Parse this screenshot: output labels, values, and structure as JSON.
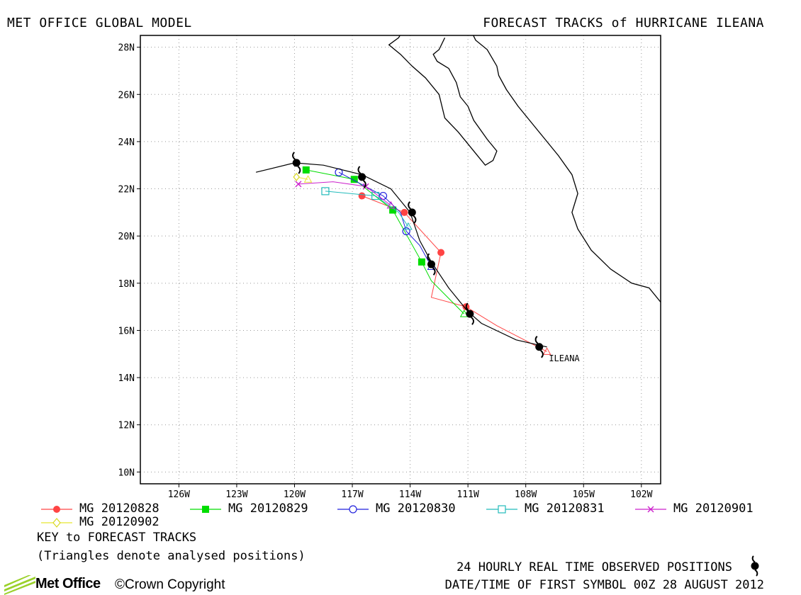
{
  "header": {
    "left_title": "MET OFFICE GLOBAL MODEL",
    "right_title": "FORECAST TRACKS of HURRICANE ILEANA"
  },
  "map": {
    "lon_range": [
      -128,
      -101
    ],
    "lat_range": [
      9.5,
      28.5
    ],
    "lon_ticks": [
      -126,
      -123,
      -120,
      -117,
      -114,
      -111,
      -108,
      -105,
      -102
    ],
    "lon_tick_labels": [
      "126W",
      "123W",
      "120W",
      "117W",
      "114W",
      "111W",
      "108W",
      "105W",
      "102W"
    ],
    "lat_ticks": [
      10,
      12,
      14,
      16,
      18,
      20,
      22,
      24,
      26,
      28
    ],
    "lat_tick_labels": [
      "10N",
      "12N",
      "14N",
      "16N",
      "18N",
      "20N",
      "22N",
      "24N",
      "26N",
      "28N"
    ],
    "grid": true,
    "storm_label": "ILEANA",
    "observed_track": {
      "color": "#000000",
      "points": [
        [
          -106.9,
          15.3
        ],
        [
          -108.5,
          15.6
        ],
        [
          -110.3,
          16.3
        ],
        [
          -111.0,
          16.8
        ],
        [
          -112.0,
          17.8
        ],
        [
          -112.9,
          18.9
        ],
        [
          -113.5,
          19.8
        ],
        [
          -114.0,
          21.0
        ],
        [
          -115.0,
          22.0
        ],
        [
          -116.5,
          22.6
        ],
        [
          -118.5,
          23.0
        ],
        [
          -120.0,
          23.1
        ],
        [
          -122.0,
          22.7
        ]
      ],
      "symbols": [
        [
          -107.3,
          15.3
        ],
        [
          -110.9,
          16.7
        ],
        [
          -112.9,
          18.8
        ],
        [
          -113.9,
          21.0
        ],
        [
          -116.5,
          22.5
        ],
        [
          -119.9,
          23.1
        ]
      ]
    },
    "forecast_tracks": [
      {
        "name": "MG 20120828",
        "color": "#ff4444",
        "marker": "circle-filled",
        "points": [
          [
            -106.9,
            15.1
          ],
          [
            -109.5,
            16.2
          ],
          [
            -111.1,
            17.0
          ],
          [
            -112.9,
            17.4
          ],
          [
            -112.4,
            19.3
          ],
          [
            -114.3,
            21.0
          ],
          [
            -116.5,
            21.7
          ]
        ],
        "markers": [
          [
            -111.1,
            17.0
          ],
          [
            -112.4,
            19.3
          ],
          [
            -114.3,
            21.0
          ],
          [
            -116.5,
            21.7
          ]
        ]
      },
      {
        "name": "MG 20120829",
        "color": "#00dd00",
        "marker": "square-filled",
        "points": [
          [
            -111.2,
            16.7
          ],
          [
            -112.9,
            18.1
          ],
          [
            -113.4,
            18.9
          ],
          [
            -114.9,
            21.1
          ],
          [
            -116.9,
            22.4
          ],
          [
            -119.4,
            22.8
          ]
        ],
        "markers": [
          [
            -113.4,
            18.9
          ],
          [
            -114.9,
            21.1
          ],
          [
            -116.9,
            22.4
          ],
          [
            -119.4,
            22.8
          ]
        ]
      },
      {
        "name": "MG 20120830",
        "color": "#2222dd",
        "marker": "circle-open",
        "points": [
          [
            -112.9,
            18.7
          ],
          [
            -113.5,
            19.6
          ],
          [
            -114.2,
            20.2
          ],
          [
            -114.5,
            21.0
          ],
          [
            -115.4,
            21.7
          ],
          [
            -117.7,
            22.7
          ]
        ],
        "markers": [
          [
            -114.2,
            20.2
          ],
          [
            -115.4,
            21.7
          ],
          [
            -117.7,
            22.7
          ]
        ]
      },
      {
        "name": "MG 20120831",
        "color": "#22bbbb",
        "marker": "square-open",
        "points": [
          [
            -114.1,
            20.4
          ],
          [
            -114.6,
            21.0
          ],
          [
            -115.8,
            21.7
          ],
          [
            -118.4,
            21.9
          ]
        ],
        "markers": [
          [
            -115.8,
            21.7
          ],
          [
            -118.4,
            21.9
          ]
        ]
      },
      {
        "name": "MG 20120901",
        "color": "#cc22cc",
        "marker": "cross",
        "points": [
          [
            -115.0,
            21.3
          ],
          [
            -116.3,
            22.1
          ],
          [
            -118.0,
            22.3
          ],
          [
            -119.8,
            22.2
          ]
        ],
        "markers": [
          [
            -116.3,
            22.1
          ],
          [
            -119.8,
            22.2
          ]
        ]
      },
      {
        "name": "MG 20120902",
        "color": "#e8e830",
        "marker": "diamond-open",
        "points": [
          [
            -119.3,
            22.4
          ],
          [
            -119.9,
            22.5
          ]
        ],
        "markers": [
          [
            -119.9,
            22.5
          ]
        ]
      }
    ],
    "coastline": [
      [
        -112.2,
        28.4
      ],
      [
        -112.5,
        27.9
      ],
      [
        -112.8,
        27.7
      ],
      [
        -112.6,
        27.4
      ],
      [
        -112.0,
        27.1
      ],
      [
        -111.6,
        26.5
      ],
      [
        -111.4,
        25.9
      ],
      [
        -111.0,
        25.5
      ],
      [
        -110.7,
        24.9
      ],
      [
        -110.0,
        24.1
      ],
      [
        -109.5,
        23.6
      ],
      [
        -109.7,
        23.2
      ],
      [
        -110.1,
        23.0
      ],
      [
        -110.7,
        23.6
      ],
      [
        -111.5,
        24.4
      ],
      [
        -112.2,
        25.0
      ],
      [
        -112.5,
        26.0
      ],
      [
        -113.2,
        26.7
      ],
      [
        -113.9,
        27.2
      ],
      [
        -114.5,
        27.7
      ],
      [
        -114.8,
        27.9
      ],
      [
        -115.1,
        28.1
      ],
      [
        -114.6,
        28.4
      ],
      [
        -114.3,
        28.8
      ]
    ],
    "mainland_coast": [
      [
        -110.9,
        28.8
      ],
      [
        -110.6,
        28.3
      ],
      [
        -110.0,
        27.9
      ],
      [
        -109.5,
        27.2
      ],
      [
        -109.4,
        26.8
      ],
      [
        -109.0,
        26.2
      ],
      [
        -108.4,
        25.5
      ],
      [
        -107.6,
        24.7
      ],
      [
        -106.9,
        24.0
      ],
      [
        -106.3,
        23.4
      ],
      [
        -105.6,
        22.6
      ],
      [
        -105.3,
        21.8
      ],
      [
        -105.6,
        21.0
      ],
      [
        -105.3,
        20.3
      ],
      [
        -104.6,
        19.4
      ],
      [
        -103.6,
        18.6
      ],
      [
        -102.5,
        18.0
      ],
      [
        -101.6,
        17.8
      ],
      [
        -101.0,
        17.2
      ]
    ]
  },
  "legend": {
    "items": [
      "MG 20120828",
      "MG 20120829",
      "MG 20120830",
      "MG 20120831",
      "MG 20120901",
      "MG 20120902"
    ],
    "key_title": "KEY to FORECAST TRACKS",
    "key_note": "(Triangles denote analysed positions)",
    "observed_label": "24 HOURLY REAL TIME OBSERVED POSITIONS",
    "first_symbol": "DATE/TIME OF FIRST SYMBOL 00Z 28 AUGUST 2012"
  },
  "footer": {
    "logo_text": "Met Office",
    "copyright": "©Crown Copyright"
  }
}
